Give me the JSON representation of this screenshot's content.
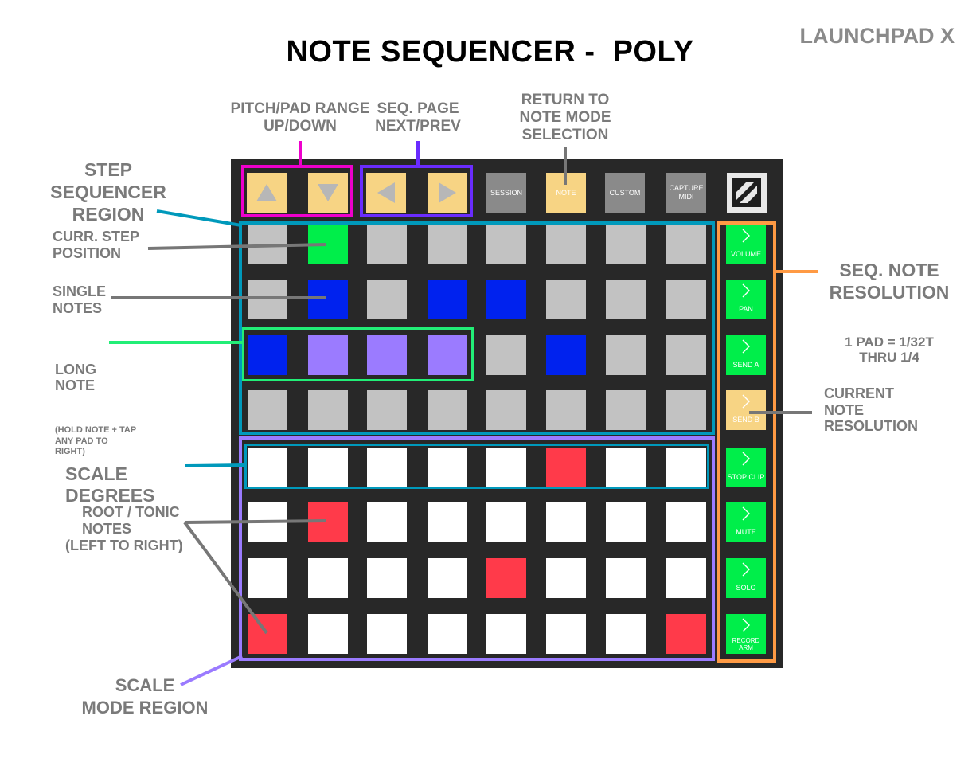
{
  "title": "NOTE SEQUENCER -  POLY",
  "brand": "LAUNCHPAD X",
  "labels": {
    "pitch_range": "PITCH/PAD RANGE\nUP/DOWN",
    "seq_page": "SEQ. PAGE\nNEXT/PREV",
    "return_to_note": "RETURN TO\nNOTE MODE\nSELECTION",
    "step_sequencer_region": "STEP\nSEQUENCER\nREGION",
    "curr_step_position": "CURR. STEP\nPOSITION",
    "single_notes": "SINGLE\nNOTES",
    "long_note": "LONG\nNOTE",
    "long_note_hint": "(HOLD NOTE + TAP\nANY PAD TO\nRIGHT)",
    "scale_degrees": "SCALE\nDEGREES",
    "scale_degrees_hint": "(LEFT TO RIGHT)",
    "root_tonic_notes": "ROOT / TONIC\nNOTES",
    "scale_mode_region": "SCALE\nMODE REGION",
    "seq_note_resolution": "SEQ. NOTE\nRESOLUTION",
    "seq_note_resolution_hint": "1 PAD = 1/32T\nTHRU 1/4",
    "current_note_resolution": "CURRENT\nNOTE\nRESOLUTION"
  },
  "top_buttons": {
    "session": "SESSION",
    "note": "NOTE",
    "custom": "CUSTOM",
    "capture_midi": "CAPTURE\nMIDI"
  },
  "side_buttons": [
    {
      "label": "VOLUME",
      "state": "green"
    },
    {
      "label": "PAN",
      "state": "green"
    },
    {
      "label": "SEND A",
      "state": "green"
    },
    {
      "label": "SEND B",
      "state": "yellow"
    },
    {
      "label": "STOP CLIP",
      "state": "green"
    },
    {
      "label": "MUTE",
      "state": "green"
    },
    {
      "label": "SOLO",
      "state": "green"
    },
    {
      "label": "RECORD\nARM",
      "state": "green"
    }
  ],
  "pad_grid": [
    [
      "grey",
      "green",
      "grey",
      "grey",
      "grey",
      "grey",
      "grey",
      "grey"
    ],
    [
      "grey",
      "blue",
      "grey",
      "blue",
      "blue",
      "grey",
      "grey",
      "grey"
    ],
    [
      "blue",
      "purple",
      "purple",
      "purple",
      "grey",
      "blue",
      "grey",
      "grey"
    ],
    [
      "grey",
      "grey",
      "grey",
      "grey",
      "grey",
      "grey",
      "grey",
      "grey"
    ],
    [
      "white",
      "white",
      "white",
      "white",
      "white",
      "red",
      "white",
      "white"
    ],
    [
      "white",
      "red",
      "white",
      "white",
      "white",
      "white",
      "white",
      "white"
    ],
    [
      "white",
      "white",
      "white",
      "white",
      "red",
      "white",
      "white",
      "white"
    ],
    [
      "red",
      "white",
      "white",
      "white",
      "white",
      "white",
      "white",
      "red"
    ]
  ],
  "colors": {
    "pitch_box": "#ee00cc",
    "page_box": "#6a2cff",
    "step_region": "#0099bb",
    "long_note": "#22ee77",
    "scale_region": "#9b7bff",
    "resolution_region": "#ff9a44",
    "pointer_grey": "#777777"
  }
}
